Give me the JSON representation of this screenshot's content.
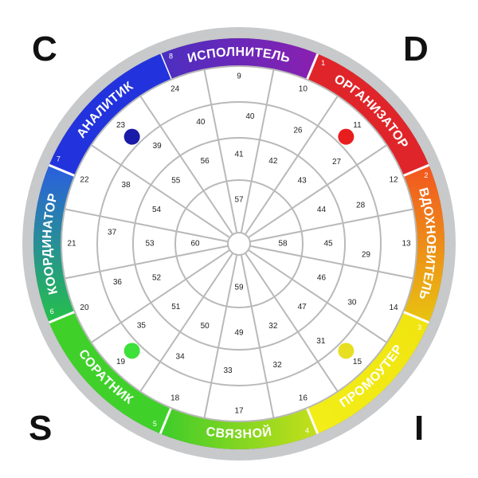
{
  "corners": {
    "top_left": "C",
    "top_right": "D",
    "bottom_left": "S",
    "bottom_right": "I"
  },
  "segments": [
    {
      "label": "ИСПОЛНИТЕЛЬ",
      "index": "8",
      "colors": [
        "#4a2fc0",
        "#8a1fb0"
      ]
    },
    {
      "label": "ОРГАНИЗАТОР",
      "index": "1",
      "colors": [
        "#e0252a",
        "#e0252a"
      ]
    },
    {
      "label": "ВДОХНОВИТЕЛЬ",
      "index": "2",
      "colors": [
        "#f2551f",
        "#e8c411"
      ]
    },
    {
      "label": "ПРОМОУТЕР",
      "index": "3",
      "colors": [
        "#f0e40f",
        "#f3ee18"
      ]
    },
    {
      "label": "СВЯЗНОЙ",
      "index": "4",
      "colors": [
        "#c6df1a",
        "#3dcc2a"
      ]
    },
    {
      "label": "СОРАТНИК",
      "index": "5",
      "colors": [
        "#3fd12a",
        "#3fd12a"
      ]
    },
    {
      "label": "КООРДИНАТОР",
      "index": "6",
      "colors": [
        "#25c04a",
        "#2a5ee0"
      ]
    },
    {
      "label": "АНАЛИТИК",
      "index": "7",
      "colors": [
        "#2233dd",
        "#2233dd"
      ]
    }
  ],
  "rings": {
    "outer": [
      "9",
      "10",
      "11",
      "12",
      "13",
      "14",
      "15",
      "16",
      "17",
      "18",
      "19",
      "20",
      "21",
      "22",
      "23",
      "24"
    ],
    "second": [
      "40",
      "26",
      "27",
      "28",
      "29",
      "30",
      "31",
      "32",
      "33",
      "34",
      "35",
      "36",
      "37",
      "38",
      "39",
      "40"
    ],
    "third": [
      "41",
      "42",
      "43",
      "44",
      "45",
      "46",
      "47",
      "32",
      "49",
      "50",
      "51",
      "52",
      "53",
      "54",
      "55",
      "56"
    ],
    "inner": [
      "57",
      "58",
      "59",
      "60"
    ]
  },
  "dots": [
    {
      "name": "dot-blue",
      "color": "#1a1aa8"
    },
    {
      "name": "dot-red",
      "color": "#e81e1e"
    },
    {
      "name": "dot-yellow",
      "color": "#e8de22"
    },
    {
      "name": "dot-green",
      "color": "#3ee03a"
    }
  ]
}
